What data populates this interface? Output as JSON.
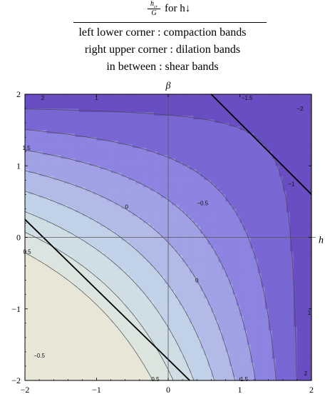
{
  "title": {
    "numerator": "h",
    "numerator_sub": "cr",
    "denominator": "G",
    "for_text": "for h↓",
    "lines": [
      "left lower corner : compaction bands",
      "right upper corner : dilation bands",
      "in between : shear bands"
    ]
  },
  "chart_data": {
    "type": "contour",
    "x_label": "h",
    "y_label": "β",
    "xlim": [
      -2,
      2
    ],
    "ylim": [
      -2,
      2
    ],
    "x_ticks": [
      -2,
      -1,
      0,
      1,
      2
    ],
    "y_ticks": [
      -2,
      -1,
      0,
      1,
      2
    ],
    "x_tick_labels": [
      "−2",
      "−1",
      "0",
      "1",
      "2"
    ],
    "y_tick_labels": [
      "−2",
      "−1",
      "0",
      "1",
      "2"
    ],
    "grid": false,
    "contour_labels": [
      {
        "text": "2",
        "x": -1.75,
        "y": 1.95
      },
      {
        "text": "1",
        "x": -1.0,
        "y": 1.95
      },
      {
        "text": "−1.5",
        "x": 1.1,
        "y": 1.95
      },
      {
        "text": "1.5",
        "x": -1.98,
        "y": 1.25
      },
      {
        "text": "0",
        "x": -0.58,
        "y": 0.43
      },
      {
        "text": "−0.5",
        "x": 0.48,
        "y": 0.48
      },
      {
        "text": "−1",
        "x": 1.72,
        "y": 0.75
      },
      {
        "text": "−2",
        "x": 1.84,
        "y": 1.8
      },
      {
        "text": "0.5",
        "x": -1.97,
        "y": -0.2
      },
      {
        "text": "0",
        "x": 0.4,
        "y": -0.6
      },
      {
        "text": "1",
        "x": 1.97,
        "y": -1.05
      },
      {
        "text": "−0.5",
        "x": -1.8,
        "y": -1.65
      },
      {
        "text": "2",
        "x": 1.92,
        "y": -1.9
      },
      {
        "text": "0.5",
        "x": -0.18,
        "y": -1.98
      },
      {
        "text": "1.5",
        "x": 1.06,
        "y": -1.98
      }
    ],
    "lines": [
      {
        "x1": -2.0,
        "y1": 0.25,
        "x2": 0.3,
        "y2": -2.0
      },
      {
        "x1": 0.6,
        "y1": 2.0,
        "x2": 2.0,
        "y2": 0.6
      }
    ],
    "levels": [
      2,
      1.5,
      1,
      0.5,
      0,
      -0.5,
      -1,
      -1.5,
      -2
    ],
    "colors": {
      "high": "#ece7d3",
      "mid": "#bfd3e6",
      "low": "#8a82de",
      "lowest": "#5a35a8",
      "frame": "#000000",
      "contour": "#4a4a4a"
    }
  }
}
